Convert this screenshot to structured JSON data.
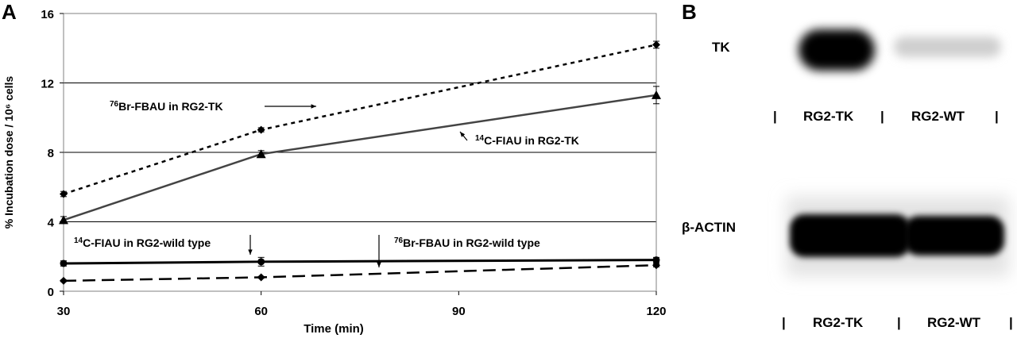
{
  "panels": {
    "a_label": "A",
    "b_label": "B"
  },
  "chart_data": {
    "type": "line",
    "title": "",
    "xlabel": "Time (min)",
    "ylabel": "% Incubation dose / 10⁶ cells",
    "x_ticks": [
      "30",
      "60",
      "90",
      "120"
    ],
    "y_ticks": [
      "0",
      "4",
      "8",
      "12",
      "16"
    ],
    "xlim": [
      30,
      120
    ],
    "ylim": [
      0,
      16
    ],
    "grid": "horizontal",
    "series": [
      {
        "label_sup": "76",
        "label": "Br-FBAU in RG2-TK",
        "x": [
          30,
          60,
          120
        ],
        "y": [
          5.6,
          9.3,
          14.2
        ],
        "err": [
          0.15,
          0.12,
          0.2
        ],
        "marker": "diamond",
        "line": "dotted",
        "color": "#000000"
      },
      {
        "label_sup": "14",
        "label": "C-FIAU in RG2-TK",
        "x": [
          30,
          60,
          120
        ],
        "y": [
          4.1,
          7.9,
          11.3
        ],
        "err": [
          0.2,
          0.2,
          0.5
        ],
        "marker": "triangle",
        "line": "solid",
        "color": "#444444"
      },
      {
        "label_sup": "14",
        "label": "C-FIAU in RG2-wild type",
        "x": [
          30,
          60,
          120
        ],
        "y": [
          1.6,
          1.7,
          1.8
        ],
        "err": [
          0.15,
          0.25,
          0.15
        ],
        "marker": "circle",
        "line": "solid",
        "color": "#000000"
      },
      {
        "label_sup": "76",
        "label": "Br-FBAU in RG2-wild type",
        "x": [
          30,
          60,
          120
        ],
        "y": [
          0.6,
          0.8,
          1.5
        ],
        "err": [
          0.05,
          0.05,
          0.1
        ],
        "marker": "diamond",
        "line": "dashed",
        "color": "#000000"
      }
    ]
  },
  "blots": {
    "tk_label": "TK",
    "actin_label": "β-ACTIN",
    "lanes": [
      "RG2-TK",
      "RG2-WT"
    ],
    "separator": "|"
  }
}
